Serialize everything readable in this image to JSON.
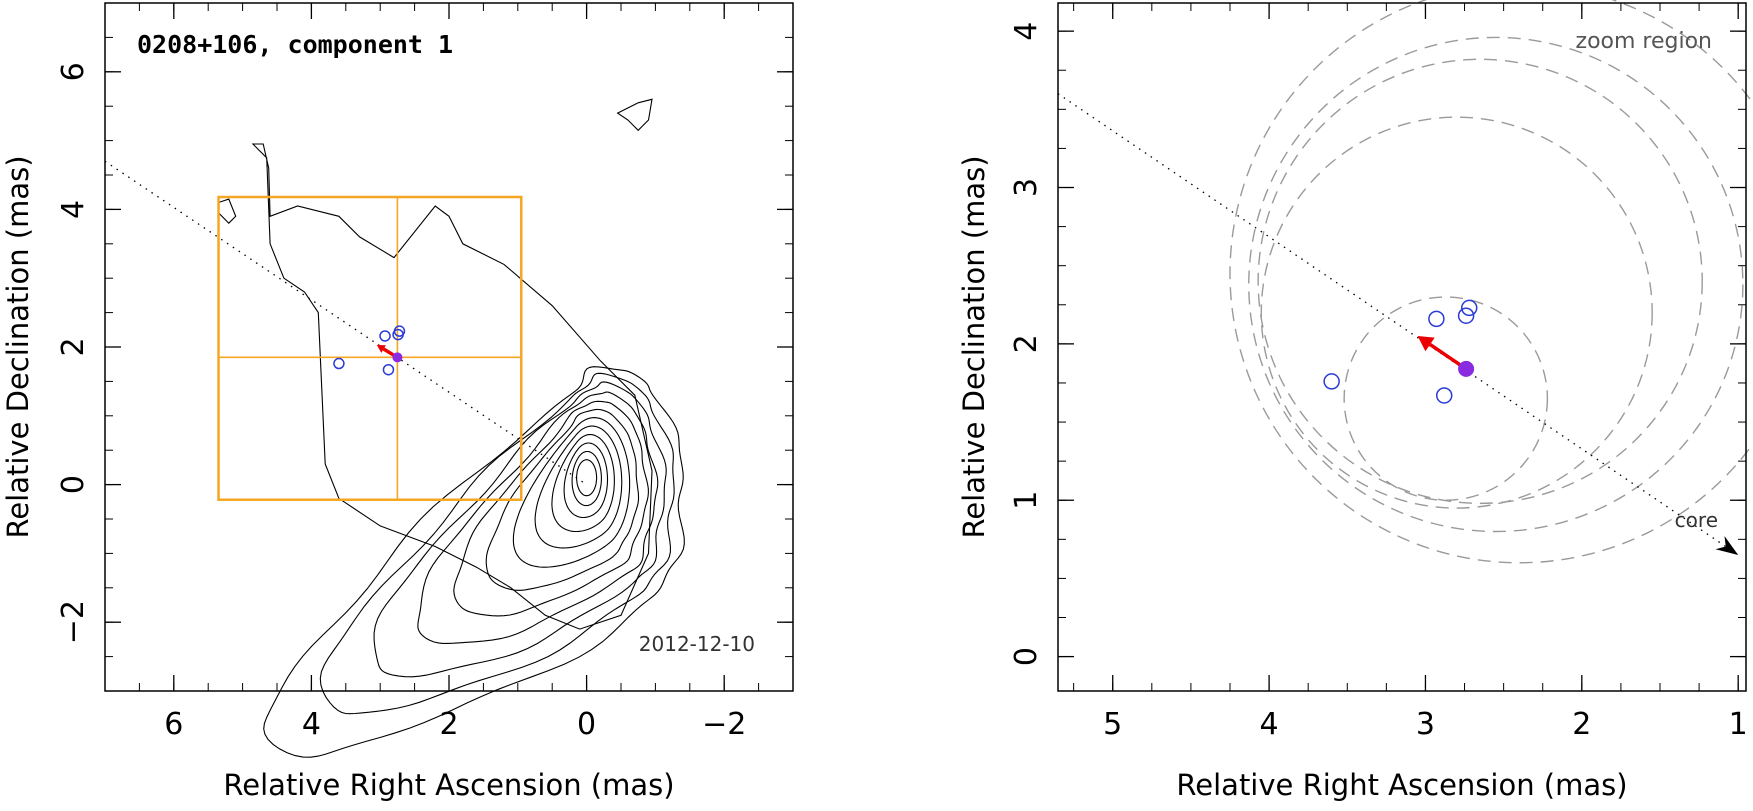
{
  "colors": {
    "frame": "#000000",
    "contour": "#000000",
    "orange": "#f5a623",
    "blue": "#2b3bd6",
    "purple": "#8a2be2",
    "red": "#ee0000",
    "gray": "#9a9a9a"
  },
  "chart_data": [
    {
      "type": "contour",
      "title": "0208+106, component 1",
      "date_label": "2012-12-10",
      "xlabel": "Relative Right Ascension (mas)",
      "ylabel": "Relative Declination (mas)",
      "xlim": [
        7.0,
        -3.0
      ],
      "ylim": [
        -3.0,
        7.0
      ],
      "xticks": [
        6,
        4,
        2,
        0,
        -2
      ],
      "yticks": [
        -2,
        0,
        2,
        4,
        6
      ],
      "xtick_labels": [
        "6",
        "4",
        "2",
        "0",
        "−2"
      ],
      "ytick_labels": [
        "−2",
        "0",
        "2",
        "4",
        "6"
      ],
      "core": {
        "x": 0.0,
        "y": 0.1
      },
      "contour_levels": 12,
      "zoom_box": {
        "x0": 5.35,
        "x1": 0.95,
        "y0": -0.22,
        "y1": 4.18,
        "cross_x": 2.75,
        "cross_y": 1.85
      },
      "jet_axis_line": {
        "x0": 7.0,
        "y0": 4.7,
        "x1": 0.0,
        "y1": 0.0
      },
      "points": [
        {
          "x": 3.6,
          "y": 1.76
        },
        {
          "x": 2.93,
          "y": 2.16
        },
        {
          "x": 2.72,
          "y": 2.23
        },
        {
          "x": 2.88,
          "y": 1.67
        },
        {
          "x": 2.74,
          "y": 2.18
        }
      ],
      "component": {
        "x": 2.75,
        "y": 1.85
      },
      "motion_arrow": {
        "x0": 2.75,
        "y0": 1.85,
        "x1": 3.05,
        "y1": 2.03
      }
    },
    {
      "type": "scatter",
      "corner_label": "zoom region",
      "core_label": "core",
      "xlabel": "Relative Right Ascension (mas)",
      "ylabel": "Relative Declination (mas)",
      "xlim": [
        5.35,
        0.95
      ],
      "ylim": [
        -0.22,
        4.18
      ],
      "xticks": [
        5,
        4,
        3,
        2,
        1
      ],
      "yticks": [
        0,
        1,
        2,
        3,
        4
      ],
      "xtick_labels": [
        "5",
        "4",
        "3",
        "2",
        "1"
      ],
      "ytick_labels": [
        "0",
        "1",
        "2",
        "3",
        "4"
      ],
      "jet_axis_line": {
        "x0": 5.35,
        "y0": 3.6,
        "x1": 1.0,
        "y1": 0.65
      },
      "circles": [
        {
          "cx": 2.87,
          "cy": 1.65,
          "r": 0.65
        },
        {
          "cx": 2.8,
          "cy": 2.2,
          "r": 1.25
        },
        {
          "cx": 2.65,
          "cy": 2.4,
          "r": 1.42
        },
        {
          "cx": 2.55,
          "cy": 2.38,
          "r": 1.58
        },
        {
          "cx": 2.4,
          "cy": 2.45,
          "r": 1.85
        }
      ],
      "points": [
        {
          "x": 3.6,
          "y": 1.76
        },
        {
          "x": 2.93,
          "y": 2.16
        },
        {
          "x": 2.72,
          "y": 2.23
        },
        {
          "x": 2.88,
          "y": 1.67
        },
        {
          "x": 2.74,
          "y": 2.18
        }
      ],
      "component": {
        "x": 2.74,
        "y": 1.84
      },
      "motion_arrow": {
        "x0": 2.74,
        "y0": 1.84,
        "x1": 3.05,
        "y1": 2.05
      }
    }
  ]
}
